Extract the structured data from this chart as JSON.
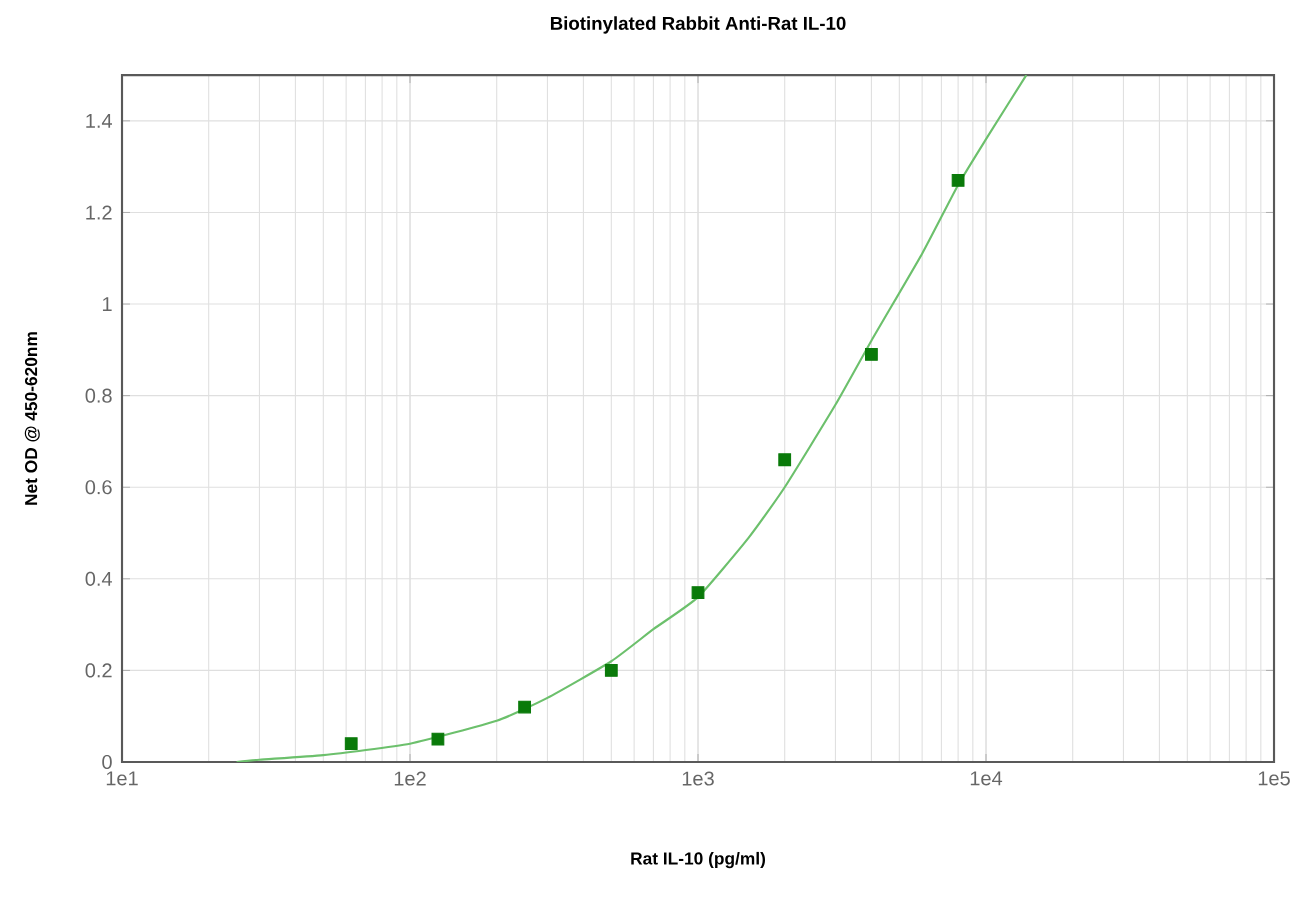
{
  "chart_data": {
    "type": "scatter",
    "title": "Biotinylated Rabbit Anti-Rat IL-10",
    "xlabel": "Rat IL-10 (pg/ml)",
    "ylabel": "Net OD @ 450-620nm",
    "log": "x",
    "grid": true,
    "marker": "square",
    "xlim": [
      10,
      100000
    ],
    "ylim": [
      0,
      1.5
    ],
    "xticks": [
      {
        "value": 10,
        "label": "1e1"
      },
      {
        "value": 100,
        "label": "1e2"
      },
      {
        "value": 1000,
        "label": "1e3"
      },
      {
        "value": 10000,
        "label": "1e4"
      },
      {
        "value": 100000,
        "label": "1e5"
      }
    ],
    "yticks": [
      0,
      0.2,
      0.4,
      0.6,
      0.8,
      1,
      1.2,
      1.4
    ],
    "series": [
      {
        "color": "#0a7a0a",
        "x": [
          62.5,
          125,
          250,
          500,
          1000,
          2000,
          4000,
          8000
        ],
        "values": [
          0.04,
          0.05,
          0.12,
          0.2,
          0.37,
          0.66,
          0.89,
          1.27
        ]
      },
      {
        "type": "line",
        "color": "#6cc06c",
        "marker": "none",
        "x": [
          25,
          30,
          50,
          100,
          200,
          300,
          500,
          700,
          1000,
          1500,
          2000,
          3000,
          4000,
          6000,
          8000,
          10000,
          13800
        ],
        "values": [
          0,
          0.005,
          0.015,
          0.04,
          0.09,
          0.14,
          0.22,
          0.29,
          0.36,
          0.49,
          0.6,
          0.78,
          0.92,
          1.11,
          1.26,
          1.36,
          1.5
        ]
      }
    ]
  }
}
